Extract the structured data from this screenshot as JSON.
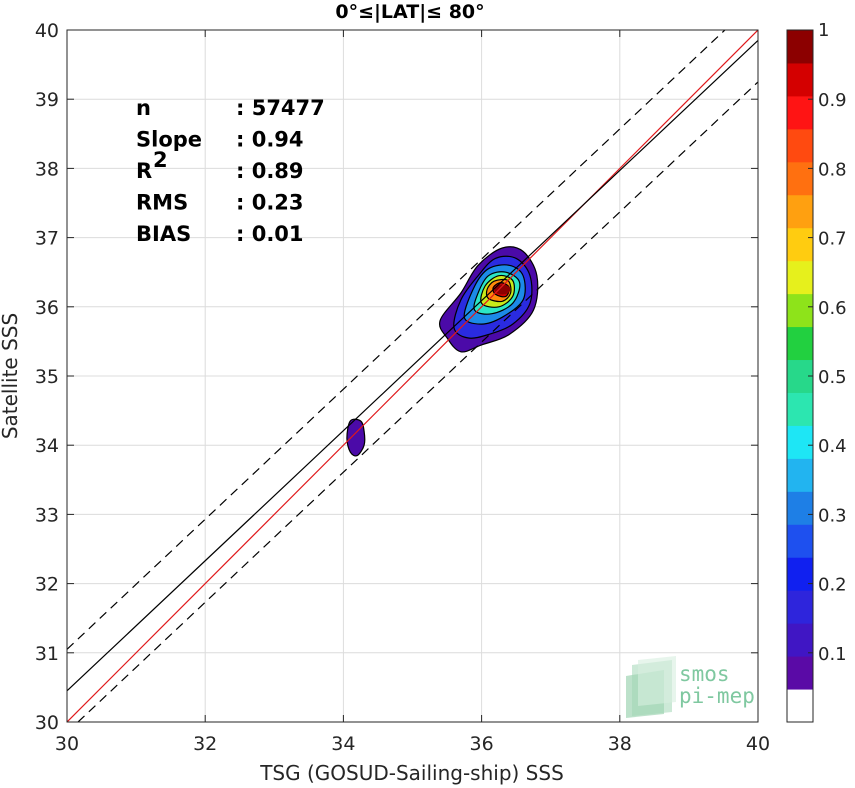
{
  "chart_data": {
    "type": "scatter",
    "title": "0°≤|LAT|≤ 80°",
    "xlabel": "TSG (GOSUD-Sailing-ship) SSS",
    "ylabel": "Satellite SSS",
    "xlim": [
      30,
      40
    ],
    "ylim": [
      30,
      40
    ],
    "xticks": [
      "30",
      "32",
      "34",
      "36",
      "38",
      "40"
    ],
    "yticks": [
      "30",
      "31",
      "32",
      "33",
      "34",
      "35",
      "36",
      "37",
      "38",
      "39",
      "40"
    ],
    "grid": true,
    "stats": [
      {
        "label": "n",
        "value": ": 57477"
      },
      {
        "label": "Slope",
        "value": ": 0.94"
      },
      {
        "label": "R",
        "sup": "2",
        "value": ": 0.89"
      },
      {
        "label": "RMS",
        "value": ": 0.23"
      },
      {
        "label": "BIAS",
        "value": ": 0.01"
      }
    ],
    "reference_lines": [
      {
        "kind": "identity",
        "slope": 1.0,
        "intercept": 0.0,
        "color": "#e0191b",
        "style": "solid"
      },
      {
        "kind": "regression",
        "slope": 0.94,
        "intercept": 2.25,
        "color": "#000000",
        "style": "solid"
      },
      {
        "kind": "upper",
        "slope": 0.94,
        "intercept": 2.85,
        "color": "#000000",
        "style": "dashed"
      },
      {
        "kind": "lower",
        "slope": 0.94,
        "intercept": 1.65,
        "color": "#000000",
        "style": "dashed"
      }
    ],
    "density_peak": {
      "x": 36.3,
      "y": 36.25
    },
    "contours": [
      {
        "level": 0.05,
        "color": "#4b0aa8",
        "points": [
          [
            34.25,
            34.35
          ],
          [
            34.3,
            34.2
          ],
          [
            34.3,
            34.0
          ],
          [
            34.2,
            33.85
          ],
          [
            34.1,
            33.9
          ],
          [
            34.05,
            34.1
          ],
          [
            34.1,
            34.35
          ]
        ]
      },
      {
        "level": 0.05,
        "color": "#4b0aa8",
        "points": [
          [
            35.5,
            35.55
          ],
          [
            35.7,
            35.35
          ],
          [
            36.0,
            35.45
          ],
          [
            36.4,
            35.6
          ],
          [
            36.75,
            35.95
          ],
          [
            36.8,
            36.45
          ],
          [
            36.6,
            36.8
          ],
          [
            36.3,
            36.85
          ],
          [
            35.95,
            36.6
          ],
          [
            35.7,
            36.2
          ],
          [
            35.4,
            35.8
          ]
        ]
      },
      {
        "level": 0.15,
        "color": "#2a2be0",
        "points": [
          [
            35.6,
            35.7
          ],
          [
            35.8,
            35.55
          ],
          [
            36.1,
            35.6
          ],
          [
            36.45,
            35.75
          ],
          [
            36.7,
            36.05
          ],
          [
            36.7,
            36.45
          ],
          [
            36.5,
            36.7
          ],
          [
            36.2,
            36.7
          ],
          [
            35.95,
            36.45
          ],
          [
            35.7,
            36.1
          ]
        ]
      },
      {
        "level": 0.3,
        "color": "#1c8ae8",
        "points": [
          [
            35.75,
            35.85
          ],
          [
            36.0,
            35.75
          ],
          [
            36.3,
            35.85
          ],
          [
            36.6,
            36.1
          ],
          [
            36.6,
            36.45
          ],
          [
            36.4,
            36.6
          ],
          [
            36.1,
            36.55
          ],
          [
            35.9,
            36.3
          ]
        ]
      },
      {
        "level": 0.45,
        "color": "#2ce6c5",
        "points": [
          [
            35.9,
            35.95
          ],
          [
            36.15,
            35.9
          ],
          [
            36.45,
            36.05
          ],
          [
            36.55,
            36.35
          ],
          [
            36.35,
            36.5
          ],
          [
            36.1,
            36.45
          ],
          [
            35.95,
            36.2
          ]
        ]
      },
      {
        "level": 0.6,
        "color": "#c8ea1a",
        "points": [
          [
            36.0,
            36.05
          ],
          [
            36.25,
            36.0
          ],
          [
            36.45,
            36.15
          ],
          [
            36.45,
            36.38
          ],
          [
            36.25,
            36.45
          ],
          [
            36.05,
            36.3
          ]
        ]
      },
      {
        "level": 0.75,
        "color": "#ff8a0a",
        "points": [
          [
            36.1,
            36.12
          ],
          [
            36.3,
            36.08
          ],
          [
            36.42,
            36.2
          ],
          [
            36.38,
            36.38
          ],
          [
            36.18,
            36.37
          ],
          [
            36.08,
            36.25
          ]
        ]
      },
      {
        "level": 0.9,
        "color": "#d40000",
        "points": [
          [
            36.2,
            36.18
          ],
          [
            36.35,
            36.15
          ],
          [
            36.4,
            36.28
          ],
          [
            36.28,
            36.35
          ],
          [
            36.17,
            36.28
          ]
        ]
      }
    ],
    "colorbar": {
      "min": 0,
      "max": 1,
      "ticks": [
        "0.1",
        "0.2",
        "0.3",
        "0.4",
        "0.5",
        "0.6",
        "0.7",
        "0.8",
        "0.9",
        "1"
      ],
      "colors": [
        "#ffffff",
        "#5a0aa6",
        "#4016c4",
        "#2e25dc",
        "#1020f0",
        "#1e50ef",
        "#1e7fe6",
        "#22b4f0",
        "#1ee6f5",
        "#2ce6b0",
        "#27d88a",
        "#22d040",
        "#8ee31a",
        "#e6f01c",
        "#ffcc10",
        "#ffa010",
        "#ff7010",
        "#ff4a10",
        "#ff1414",
        "#d40000",
        "#8c0000"
      ]
    },
    "logo": {
      "line1": "smos",
      "line2": "pi-mep"
    }
  }
}
